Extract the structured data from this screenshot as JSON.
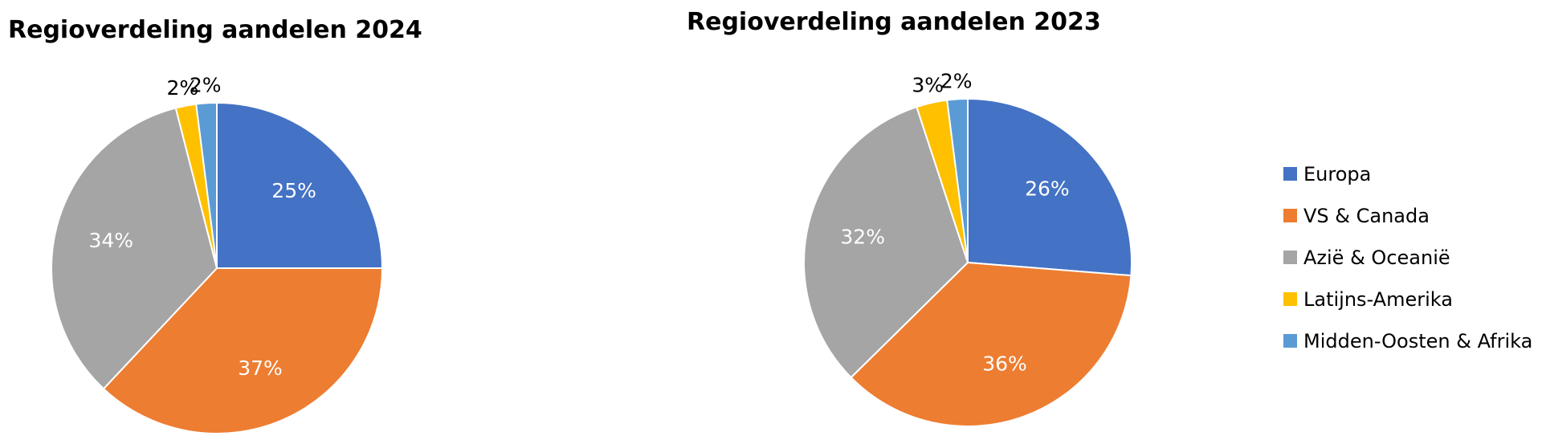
{
  "chart_data": [
    {
      "type": "pie",
      "title": "Regioverdeling aandelen 2024",
      "slices": [
        {
          "label": "Europa",
          "value": 25,
          "data_label": "25%",
          "color": "#4472C4"
        },
        {
          "label": "VS & Canada",
          "value": 37,
          "data_label": "37%",
          "color": "#ED7D31"
        },
        {
          "label": "Azië & Oceanië",
          "value": 34,
          "data_label": "34%",
          "color": "#A5A5A5"
        },
        {
          "label": "Latijns-Amerika",
          "value": 2,
          "data_label": "2%",
          "color": "#FFC000"
        },
        {
          "label": "Midden-Oosten & Afrika",
          "value": 2,
          "data_label": "2%",
          "color": "#5B9BD5"
        }
      ]
    },
    {
      "type": "pie",
      "title": "Regioverdeling aandelen 2023",
      "slices": [
        {
          "label": "Europa",
          "value": 26,
          "data_label": "26%",
          "color": "#4472C4"
        },
        {
          "label": "VS & Canada",
          "value": 36,
          "data_label": "36%",
          "color": "#ED7D31"
        },
        {
          "label": "Azië & Oceanië",
          "value": 32,
          "data_label": "32%",
          "color": "#A5A5A5"
        },
        {
          "label": "Latijns-Amerika",
          "value": 3,
          "data_label": "3%",
          "color": "#FFC000"
        },
        {
          "label": "Midden-Oosten & Afrika",
          "value": 2,
          "data_label": "2%",
          "color": "#5B9BD5"
        }
      ]
    }
  ],
  "legend": {
    "placement": "right",
    "items": [
      {
        "label": "Europa",
        "color": "#4472C4"
      },
      {
        "label": "VS & Canada",
        "color": "#ED7D31"
      },
      {
        "label": "Azië & Oceanië",
        "color": "#A5A5A5"
      },
      {
        "label": "Latijns-Amerika",
        "color": "#FFC000"
      },
      {
        "label": "Midden-Oosten & Afrika",
        "color": "#5B9BD5"
      }
    ]
  }
}
